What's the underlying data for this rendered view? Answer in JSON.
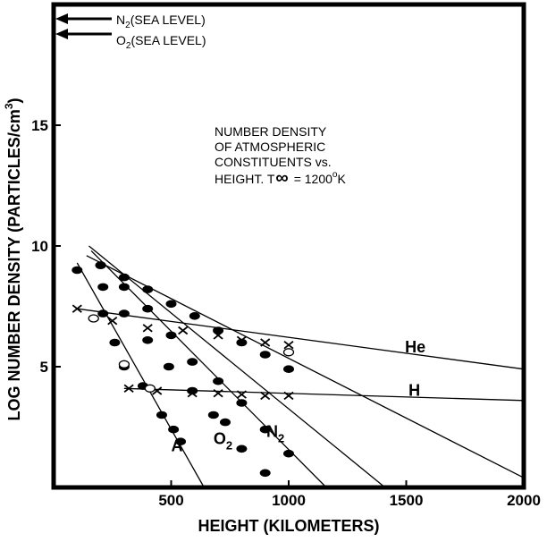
{
  "chart_data": {
    "type": "line",
    "title_lines": [
      "NUMBER DENSITY",
      "OF ATMOSPHERIC",
      "CONSTITUENTS vs.",
      "HEIGHT.  T",
      "= 1200",
      "K"
    ],
    "xlabel": "HEIGHT (KILOMETERS)",
    "ylabel": "LOG NUMBER DENSITY (PARTICLES/cm",
    "ylabel_sup": "3",
    "ylabel_close": ")",
    "xlim": [
      0,
      2000
    ],
    "ylim": [
      0,
      20
    ],
    "xticks": [
      {
        "v": 500,
        "label": "500"
      },
      {
        "v": 1000,
        "label": "1000"
      },
      {
        "v": 1500,
        "label": "1500"
      },
      {
        "v": 2000,
        "label": "2000"
      }
    ],
    "yticks": [
      {
        "v": 5,
        "label": "5"
      },
      {
        "v": 10,
        "label": "10"
      },
      {
        "v": 15,
        "label": "15"
      }
    ],
    "sea_level": [
      {
        "main": "N",
        "sub": "2",
        "rest": "(SEA LEVEL)",
        "y": 19.4
      },
      {
        "main": "O",
        "sub": "2",
        "rest": "(SEA LEVEL)",
        "y": 18.8
      }
    ],
    "series": [
      {
        "key": "A",
        "name": "A",
        "sub": "",
        "label_at": [
          500,
          1.5
        ],
        "line": [
          [
            100,
            9.3
          ],
          [
            640,
            0
          ]
        ],
        "points": [
          [
            100,
            9.0
          ],
          [
            210,
            7.2
          ],
          [
            260,
            6.0
          ],
          [
            300,
            5.0
          ],
          [
            380,
            4.2
          ],
          [
            460,
            3.0
          ],
          [
            510,
            2.4
          ],
          [
            540,
            1.9
          ]
        ]
      },
      {
        "key": "O2",
        "name": "O",
        "sub": "2",
        "label_at": [
          680,
          1.8
        ],
        "line": [
          [
            160,
            9.8
          ],
          [
            1160,
            0
          ]
        ],
        "points": [
          [
            210,
            8.3
          ],
          [
            300,
            7.2
          ],
          [
            400,
            6.1
          ],
          [
            490,
            5.0
          ],
          [
            590,
            4.0
          ],
          [
            680,
            3.0
          ],
          [
            730,
            2.7
          ],
          [
            800,
            1.6
          ],
          [
            900,
            0.6
          ]
        ]
      },
      {
        "key": "N2",
        "name": "N",
        "sub": "2",
        "label_at": [
          905,
          2.1
        ],
        "line": [
          [
            150,
            10.0
          ],
          [
            1410,
            0
          ]
        ],
        "points": [
          [
            200,
            9.2
          ],
          [
            300,
            8.3
          ],
          [
            400,
            7.4
          ],
          [
            500,
            6.3
          ],
          [
            590,
            5.2
          ],
          [
            700,
            4.4
          ],
          [
            800,
            3.5
          ],
          [
            900,
            2.4
          ],
          [
            1000,
            1.4
          ]
        ]
      },
      {
        "key": "O",
        "name": "",
        "sub": "",
        "label_at": null,
        "line": [
          [
            140,
            9.6
          ],
          [
            2000,
            0.4
          ]
        ],
        "points": [
          [
            200,
            9.2
          ],
          [
            300,
            8.7
          ],
          [
            400,
            8.2
          ],
          [
            500,
            7.6
          ],
          [
            600,
            7.1
          ],
          [
            700,
            6.5
          ],
          [
            800,
            6.0
          ],
          [
            900,
            5.5
          ],
          [
            1000,
            4.9
          ]
        ]
      },
      {
        "key": "He",
        "name": "He",
        "sub": "",
        "label_at": [
          1495,
          5.6
        ],
        "line": [
          [
            100,
            7.4
          ],
          [
            2000,
            4.9
          ]
        ],
        "points": [
          [
            100,
            7.4
          ],
          [
            250,
            6.9
          ],
          [
            400,
            6.6
          ],
          [
            550,
            6.5
          ],
          [
            700,
            6.3
          ],
          [
            800,
            6.1
          ],
          [
            900,
            6.0
          ],
          [
            1000,
            5.9
          ]
        ]
      },
      {
        "key": "H",
        "name": "H",
        "sub": "",
        "label_at": [
          1510,
          3.8
        ],
        "line": [
          [
            300,
            4.1
          ],
          [
            2000,
            3.6
          ]
        ],
        "points": [
          [
            320,
            4.1
          ],
          [
            440,
            4.0
          ],
          [
            590,
            3.9
          ],
          [
            700,
            3.9
          ],
          [
            800,
            3.85
          ],
          [
            900,
            3.8
          ],
          [
            1000,
            3.8
          ]
        ]
      }
    ],
    "open_circles": [
      [
        170,
        7.0
      ],
      [
        300,
        5.1
      ],
      [
        410,
        4.1
      ],
      [
        1000,
        5.6
      ]
    ]
  }
}
